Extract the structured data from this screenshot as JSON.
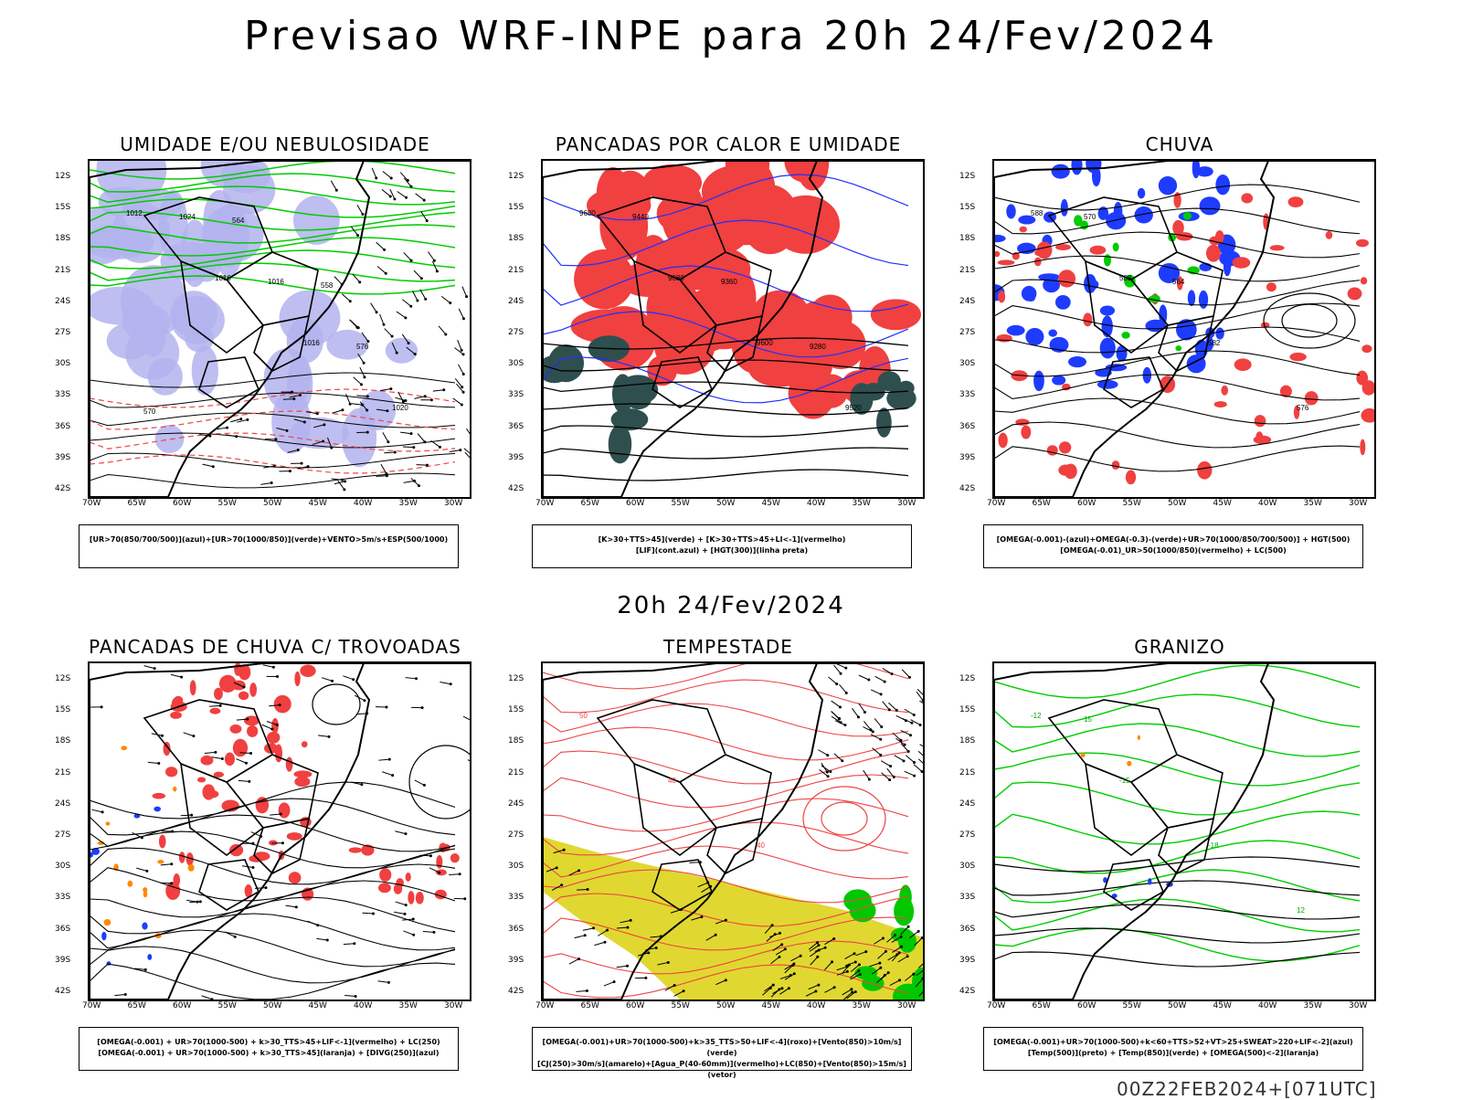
{
  "header": {
    "main_title": "Previsao WRF-INPE  para 20h 24/Fev/2024",
    "mid_title": "20h 24/Fev/2024",
    "footer_stamp": "00Z22FEB2024+[071UTC]"
  },
  "axes": {
    "lat_labels": [
      "12S",
      "15S",
      "18S",
      "21S",
      "24S",
      "27S",
      "30S",
      "33S",
      "36S",
      "39S",
      "42S"
    ],
    "lon_labels": [
      "70W",
      "65W",
      "60W",
      "55W",
      "50W",
      "45W",
      "40W",
      "35W",
      "30W"
    ]
  },
  "colors": {
    "humidity_blue": "#b3b3ee",
    "humidity_green": "#00cc00",
    "heat_red": "#f04040",
    "dark_teal": "#2f4f4f",
    "rain_blue": "#1e3cff",
    "storm_yellow": "#e0d830",
    "contour_red": "#ee4444"
  },
  "panels": [
    {
      "id": "umidade",
      "title": "UMIDADE E/OU NEBULOSIDADE",
      "legend_lines": [
        "[UR>70(850/700/500)](azul)+[UR>70(1000/850)](verde)+VENTO>5m/s+ESP(500/1000)"
      ],
      "contour_labels": [
        "1012",
        "1016",
        "1016",
        "1020",
        "1024",
        "1016",
        "576",
        "570",
        "564",
        "558"
      ]
    },
    {
      "id": "pancadas-calor",
      "title": "PANCADAS POR CALOR E UMIDADE",
      "legend_lines": [
        "[K>30+TTS>45](verde) + [K>30+TTS>45+LI<-1](vermelho)",
        "[LIF](cont.azul) + [HGT(300)](linha preta)"
      ],
      "contour_labels": [
        "9680",
        "9680",
        "9600",
        "9520",
        "9440",
        "9360",
        "9280"
      ]
    },
    {
      "id": "chuva",
      "title": "CHUVA",
      "legend_lines": [
        "[OMEGA(-0.001)-(azul)+OMEGA(-0.3)-(verde)+UR>70(1000/850/700/500)] + HGT(500)",
        "[OMEGA(-0.01)_UR>50(1000/850)(vermelho) + LC(500)"
      ],
      "contour_labels": [
        "588",
        "588",
        "582",
        "576",
        "570",
        "564"
      ]
    },
    {
      "id": "trovoadas",
      "title": "PANCADAS DE CHUVA C/ TROVOADAS",
      "legend_lines": [
        "[OMEGA(-0.001) + UR>70(1000-500) + k>30_TTS>45+LIF<-1](vermelho) + LC(250)",
        "[OMEGA(-0.001) + UR>70(1000-500) + k>30_TTS>45](laranja) + [DIVG(250)](azul)"
      ],
      "contour_labels": []
    },
    {
      "id": "tempestade",
      "title": "TEMPESTADE",
      "legend_lines": [
        "[OMEGA(-0.001)+UR>70(1000-500)+k>35_TTS>50+LIF<-4](roxo)+[Vento(850)>10m/s](verde)",
        "[CJ(250)>30m/s](amarelo)+[Agua_P(40-60mm)](vermelho)+LC(850)+[Vento(850)>15m/s](vetor)"
      ],
      "contour_labels": [
        "50",
        "40",
        "40"
      ]
    },
    {
      "id": "granizo",
      "title": "GRANIZO",
      "legend_lines": [
        "[OMEGA(-0.001)+UR>70(1000-500)+k<60+TTS>52+VT>25+SWEAT>220+LIF<-2](azul)",
        "[Temp(500)](preto) + [Temp(850)](verde) + [OMEGA(500)<-2](laranja)"
      ],
      "contour_labels": [
        "-12",
        "-15",
        "-18",
        "12",
        "15"
      ]
    }
  ]
}
